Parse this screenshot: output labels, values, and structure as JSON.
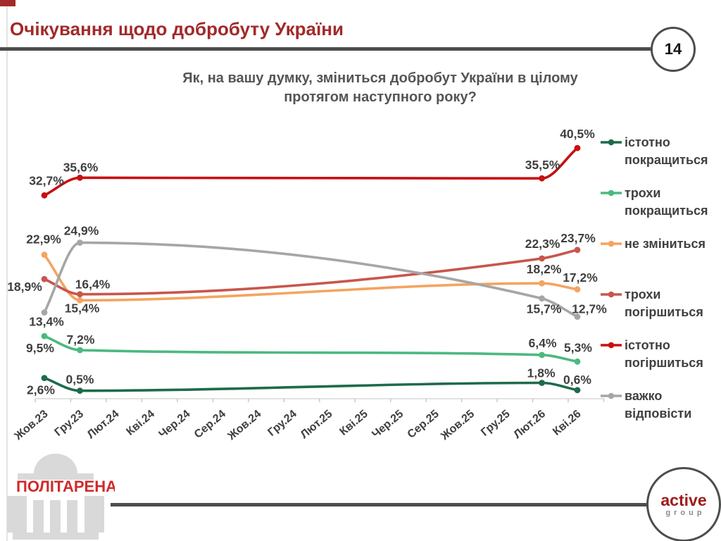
{
  "header": {
    "title": "Очікування щодо добробуту України",
    "page_number": "14"
  },
  "question": {
    "line1": "Як, на вашу думку, зміниться добробут України в цілому",
    "line2": "протягом наступного року?"
  },
  "chart_data": {
    "type": "line",
    "title": "Як, на вашу думку, зміниться добробут України в цілому протягом наступного року?",
    "x_categories": [
      "Жов.23",
      "Гру.23",
      "Лют.24",
      "Кві.24",
      "Чер.24",
      "Сер.24",
      "Жов.24",
      "Гру.24",
      "Лют.25",
      "Кві.25",
      "Чер.25",
      "Сер.25",
      "Жов.25",
      "Гру.25",
      "Лют.26",
      "Кві.26"
    ],
    "data_point_indices": [
      0,
      1,
      14,
      15
    ],
    "data_point_categories": [
      "Жов.23",
      "Гру.23",
      "Лют.26",
      "Кві.26"
    ],
    "ylim": [
      0,
      45
    ],
    "grid": false,
    "legend_position": "right",
    "value_format": "percent-comma",
    "series": [
      {
        "name": "істотно покращиться",
        "legend_lines": [
          "істотно",
          "покращиться"
        ],
        "color": "#1e6b4a",
        "values": [
          2.6,
          0.5,
          1.8,
          0.6
        ],
        "labels": [
          "2,6%",
          "0,5%",
          "1,8%",
          "0,6%"
        ]
      },
      {
        "name": "трохи покращиться",
        "legend_lines": [
          "трохи",
          "покращиться"
        ],
        "color": "#4cb980",
        "values": [
          9.5,
          7.2,
          6.4,
          5.3
        ],
        "labels": [
          "9,5%",
          "7,2%",
          "6,4%",
          "5,3%"
        ]
      },
      {
        "name": "не зміниться",
        "legend_lines": [
          "не зміниться"
        ],
        "color": "#f4a45f",
        "values": [
          22.9,
          15.4,
          18.2,
          17.2
        ],
        "labels": [
          "22,9%",
          "15,4%",
          "18,2%",
          "17,2%"
        ]
      },
      {
        "name": "трохи погіршиться",
        "legend_lines": [
          "трохи",
          "погіршиться"
        ],
        "color": "#c8564c",
        "values": [
          18.9,
          16.4,
          22.3,
          23.7
        ],
        "labels": [
          "18,9%",
          "16,4%",
          "22,3%",
          "23,7%"
        ]
      },
      {
        "name": "істотно погіршиться",
        "legend_lines": [
          "істотно",
          "погіршиться"
        ],
        "color": "#c80f12",
        "values": [
          32.7,
          35.6,
          35.5,
          40.5
        ],
        "labels": [
          "32,7%",
          "35,6%",
          "35,5%",
          "40,5%"
        ]
      },
      {
        "name": "важко відповісти",
        "legend_lines": [
          "важко",
          "відповісти"
        ],
        "color": "#a6a6a6",
        "values": [
          13.4,
          24.9,
          15.7,
          12.7
        ],
        "labels": [
          "13,4%",
          "24,9%",
          "15,7%",
          "12,7%"
        ]
      }
    ]
  },
  "footer": {
    "politarena": "ПОЛІТАРЕНА",
    "active_line1": "active",
    "active_line2": "group"
  }
}
